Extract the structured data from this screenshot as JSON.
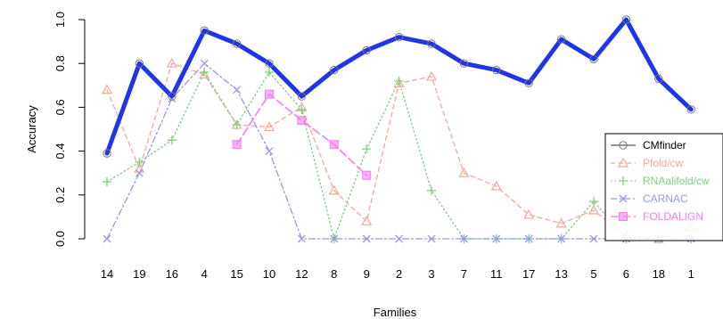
{
  "chart_data": {
    "type": "line",
    "title": "",
    "xlabel": "Families",
    "ylabel": "Accuracy",
    "ylim": [
      0,
      1
    ],
    "yticks": [
      "0.0",
      "0.2",
      "0.4",
      "0.6",
      "0.8",
      "1.0"
    ],
    "categories": [
      "14",
      "19",
      "16",
      "4",
      "15",
      "10",
      "12",
      "8",
      "9",
      "2",
      "3",
      "7",
      "11",
      "17",
      "13",
      "5",
      "6",
      "18",
      "1"
    ],
    "legend_position": "right",
    "series": [
      {
        "name": "CMfinder",
        "color": "#1f35e8",
        "marker": "circle",
        "values": [
          0.39,
          0.8,
          0.65,
          0.95,
          0.89,
          0.8,
          0.65,
          0.77,
          0.86,
          0.92,
          0.89,
          0.8,
          0.77,
          0.71,
          0.91,
          0.82,
          1.0,
          0.73,
          0.59
        ]
      },
      {
        "name": "Pfold/cw",
        "color": "#f5a89a",
        "marker": "triangle",
        "values": [
          0.68,
          0.32,
          0.8,
          0.75,
          0.52,
          0.51,
          0.6,
          0.22,
          0.08,
          0.71,
          0.74,
          0.3,
          0.24,
          0.11,
          0.07,
          0.13,
          0.01,
          0.0,
          0.05
        ]
      },
      {
        "name": "RNAalifold/cw",
        "color": "#7ed07e",
        "marker": "plus",
        "values": [
          0.26,
          0.35,
          0.45,
          0.76,
          0.52,
          0.76,
          0.59,
          0.0,
          0.41,
          0.72,
          0.22,
          0.0,
          0.0,
          0.0,
          0.0,
          0.17,
          0.0,
          0.0,
          0.0
        ]
      },
      {
        "name": "CARNAC",
        "color": "#9999e8",
        "marker": "x",
        "values": [
          0.0,
          0.3,
          0.64,
          0.8,
          0.68,
          0.4,
          0.0,
          0.0,
          0.0,
          0.0,
          0.0,
          0.0,
          0.0,
          0.0,
          0.0,
          0.0,
          0.0,
          0.0,
          0.0
        ]
      },
      {
        "name": "FOLDALIGN",
        "color": "#f57ef0",
        "marker": "square",
        "values": [
          null,
          null,
          null,
          null,
          0.43,
          0.66,
          0.54,
          0.43,
          0.29,
          null,
          null,
          null,
          null,
          null,
          null,
          null,
          null,
          null,
          null
        ]
      }
    ]
  }
}
